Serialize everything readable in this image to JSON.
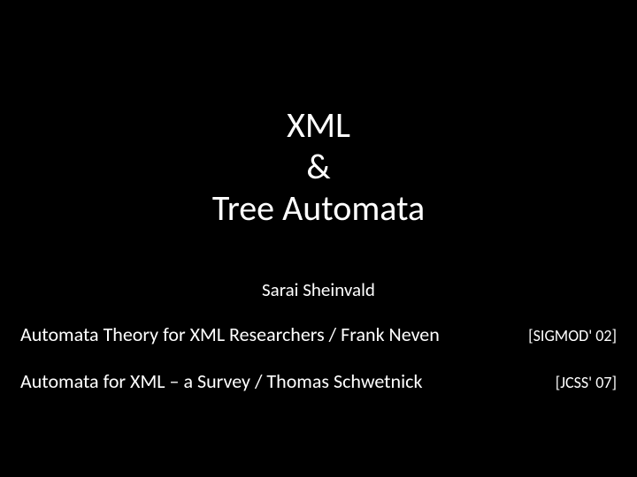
{
  "title": {
    "line1": "XML",
    "line2": "&",
    "line3": "Tree Automata"
  },
  "presenter": "Sarai Sheinvald",
  "references": [
    {
      "text": "Automata  Theory for XML Researchers / Frank Neven",
      "citation": "[SIGMOD' 02]"
    },
    {
      "text": "Automata  for XML – a Survey / Thomas Schwetnick",
      "citation": "[JCSS' 07]"
    }
  ],
  "colors": {
    "background": "#000000",
    "text": "#ffffff"
  },
  "typography": {
    "title_fontsize": 40,
    "presenter_fontsize": 21,
    "ref_text_fontsize": 22,
    "ref_cite_fontsize": 18,
    "font_family": "Calibri"
  }
}
